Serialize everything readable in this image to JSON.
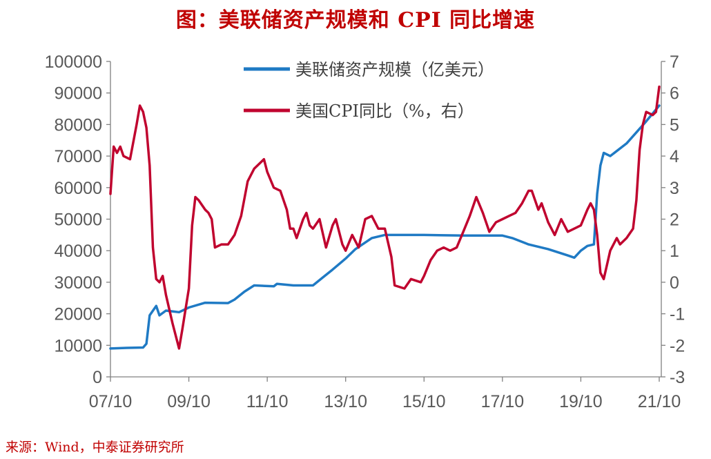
{
  "title": "图：美联储资产规模和 CPI 同比增速",
  "source": "来源：Wind，中泰证券研究所",
  "colors": {
    "fed": "#1f7ac4",
    "cpi": "#c0042f",
    "axis": "#808080",
    "title": "#c00000"
  },
  "chart_data": {
    "type": "line",
    "title": "图：美联储资产规模和 CPI 同比增速",
    "x_range": [
      "2007-10",
      "2021-10"
    ],
    "x_ticks": [
      "07/10",
      "09/10",
      "11/10",
      "13/10",
      "15/10",
      "17/10",
      "19/10",
      "21/10"
    ],
    "y_left": {
      "range": [
        0,
        100000
      ],
      "ticks": [
        "0",
        "10000",
        "20000",
        "30000",
        "40000",
        "50000",
        "60000",
        "70000",
        "80000",
        "90000",
        "100000"
      ]
    },
    "y_right": {
      "range": [
        -3,
        7
      ],
      "ticks": [
        "-3",
        "-2",
        "-1",
        "0",
        "1",
        "2",
        "3",
        "4",
        "5",
        "6",
        "7"
      ]
    },
    "legend_position": "top-center",
    "grid": false,
    "series": [
      {
        "name": "美联储资产规模（亿美元）",
        "axis": "left",
        "color": "#1f7ac4",
        "points": [
          [
            "2007-10",
            9000
          ],
          [
            "2008-03",
            9200
          ],
          [
            "2008-08",
            9300
          ],
          [
            "2008-09",
            10500
          ],
          [
            "2008-10",
            19500
          ],
          [
            "2008-12",
            22500
          ],
          [
            "2009-01",
            19500
          ],
          [
            "2009-03",
            21000
          ],
          [
            "2009-07",
            20500
          ],
          [
            "2009-10",
            22000
          ],
          [
            "2010-03",
            23500
          ],
          [
            "2010-10",
            23400
          ],
          [
            "2010-12",
            24500
          ],
          [
            "2011-03",
            27000
          ],
          [
            "2011-06",
            29000
          ],
          [
            "2011-12",
            28700
          ],
          [
            "2012-01",
            29500
          ],
          [
            "2012-06",
            29000
          ],
          [
            "2012-12",
            29000
          ],
          [
            "2013-03",
            31500
          ],
          [
            "2013-06",
            34000
          ],
          [
            "2013-10",
            37500
          ],
          [
            "2014-01",
            40500
          ],
          [
            "2014-06",
            44000
          ],
          [
            "2014-10",
            45000
          ],
          [
            "2015-10",
            45000
          ],
          [
            "2016-10",
            44800
          ],
          [
            "2017-10",
            44800
          ],
          [
            "2018-01",
            44000
          ],
          [
            "2018-06",
            42000
          ],
          [
            "2018-12",
            40500
          ],
          [
            "2019-06",
            38500
          ],
          [
            "2019-08",
            37800
          ],
          [
            "2019-10",
            40000
          ],
          [
            "2019-12",
            41500
          ],
          [
            "2020-02",
            42000
          ],
          [
            "2020-03",
            58000
          ],
          [
            "2020-04",
            67000
          ],
          [
            "2020-05",
            71000
          ],
          [
            "2020-07",
            70000
          ],
          [
            "2020-12",
            74000
          ],
          [
            "2021-03",
            77500
          ],
          [
            "2021-06",
            81000
          ],
          [
            "2021-10",
            86000
          ]
        ]
      },
      {
        "name": "美国CPI同比（%，右）",
        "axis": "right",
        "color": "#c0042f",
        "points": [
          [
            "2007-10",
            2.8
          ],
          [
            "2007-11",
            4.3
          ],
          [
            "2007-12",
            4.1
          ],
          [
            "2008-01",
            4.3
          ],
          [
            "2008-02",
            4.0
          ],
          [
            "2008-04",
            3.9
          ],
          [
            "2008-06",
            5.0
          ],
          [
            "2008-07",
            5.6
          ],
          [
            "2008-08",
            5.4
          ],
          [
            "2008-09",
            4.9
          ],
          [
            "2008-10",
            3.7
          ],
          [
            "2008-11",
            1.1
          ],
          [
            "2008-12",
            0.1
          ],
          [
            "2009-01",
            0.0
          ],
          [
            "2009-02",
            0.2
          ],
          [
            "2009-03",
            -0.4
          ],
          [
            "2009-05",
            -1.3
          ],
          [
            "2009-07",
            -2.1
          ],
          [
            "2009-08",
            -1.5
          ],
          [
            "2009-10",
            -0.2
          ],
          [
            "2009-11",
            1.8
          ],
          [
            "2009-12",
            2.7
          ],
          [
            "2010-01",
            2.6
          ],
          [
            "2010-03",
            2.3
          ],
          [
            "2010-04",
            2.2
          ],
          [
            "2010-05",
            2.0
          ],
          [
            "2010-06",
            1.1
          ],
          [
            "2010-08",
            1.2
          ],
          [
            "2010-10",
            1.2
          ],
          [
            "2010-12",
            1.5
          ],
          [
            "2011-02",
            2.1
          ],
          [
            "2011-04",
            3.2
          ],
          [
            "2011-06",
            3.6
          ],
          [
            "2011-08",
            3.8
          ],
          [
            "2011-09",
            3.9
          ],
          [
            "2011-10",
            3.5
          ],
          [
            "2011-12",
            3.0
          ],
          [
            "2012-02",
            2.9
          ],
          [
            "2012-04",
            2.3
          ],
          [
            "2012-05",
            1.7
          ],
          [
            "2012-06",
            1.7
          ],
          [
            "2012-07",
            1.4
          ],
          [
            "2012-09",
            2.0
          ],
          [
            "2012-10",
            2.2
          ],
          [
            "2012-11",
            1.8
          ],
          [
            "2012-12",
            1.7
          ],
          [
            "2013-02",
            2.0
          ],
          [
            "2013-04",
            1.1
          ],
          [
            "2013-06",
            1.8
          ],
          [
            "2013-07",
            2.0
          ],
          [
            "2013-09",
            1.2
          ],
          [
            "2013-10",
            1.0
          ],
          [
            "2013-12",
            1.5
          ],
          [
            "2014-02",
            1.1
          ],
          [
            "2014-04",
            2.0
          ],
          [
            "2014-06",
            2.1
          ],
          [
            "2014-08",
            1.7
          ],
          [
            "2014-10",
            1.7
          ],
          [
            "2014-12",
            0.8
          ],
          [
            "2015-01",
            -0.1
          ],
          [
            "2015-04",
            -0.2
          ],
          [
            "2015-06",
            0.1
          ],
          [
            "2015-09",
            0.0
          ],
          [
            "2015-10",
            0.2
          ],
          [
            "2015-12",
            0.7
          ],
          [
            "2016-02",
            1.0
          ],
          [
            "2016-04",
            1.1
          ],
          [
            "2016-06",
            1.0
          ],
          [
            "2016-08",
            1.1
          ],
          [
            "2016-10",
            1.6
          ],
          [
            "2016-12",
            2.1
          ],
          [
            "2017-02",
            2.7
          ],
          [
            "2017-04",
            2.2
          ],
          [
            "2017-06",
            1.6
          ],
          [
            "2017-08",
            1.9
          ],
          [
            "2017-10",
            2.0
          ],
          [
            "2017-12",
            2.1
          ],
          [
            "2018-02",
            2.2
          ],
          [
            "2018-04",
            2.5
          ],
          [
            "2018-06",
            2.9
          ],
          [
            "2018-07",
            2.9
          ],
          [
            "2018-09",
            2.3
          ],
          [
            "2018-10",
            2.5
          ],
          [
            "2018-12",
            1.9
          ],
          [
            "2019-02",
            1.5
          ],
          [
            "2019-04",
            2.0
          ],
          [
            "2019-06",
            1.6
          ],
          [
            "2019-08",
            1.7
          ],
          [
            "2019-10",
            1.8
          ],
          [
            "2019-12",
            2.3
          ],
          [
            "2020-01",
            2.5
          ],
          [
            "2020-02",
            2.3
          ],
          [
            "2020-03",
            1.5
          ],
          [
            "2020-04",
            0.3
          ],
          [
            "2020-05",
            0.1
          ],
          [
            "2020-07",
            1.0
          ],
          [
            "2020-09",
            1.4
          ],
          [
            "2020-10",
            1.2
          ],
          [
            "2020-12",
            1.4
          ],
          [
            "2021-02",
            1.7
          ],
          [
            "2021-03",
            2.6
          ],
          [
            "2021-04",
            4.2
          ],
          [
            "2021-05",
            5.0
          ],
          [
            "2021-06",
            5.4
          ],
          [
            "2021-08",
            5.3
          ],
          [
            "2021-09",
            5.4
          ],
          [
            "2021-10",
            6.2
          ]
        ]
      }
    ]
  }
}
